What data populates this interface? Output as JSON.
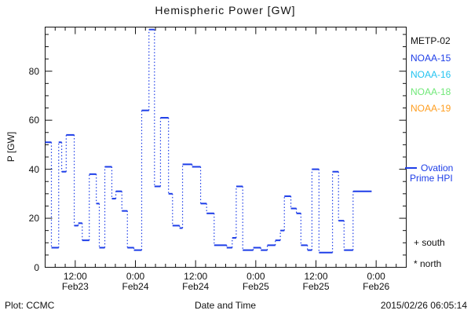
{
  "title": "Hemispheric Power [GW]",
  "y_axis": {
    "label": "P [GW]",
    "major_ticks": [
      0,
      20,
      40,
      60,
      80
    ],
    "minor_step": 5,
    "range": [
      0,
      98
    ]
  },
  "x_axis": {
    "label": "Date and Time",
    "range_hours": [
      0,
      72
    ],
    "minor_step_hours": 2,
    "major_ticks": [
      {
        "hour": 6,
        "time": "12:00",
        "date": "Feb23"
      },
      {
        "hour": 18,
        "time": "0:00",
        "date": "Feb24"
      },
      {
        "hour": 30,
        "time": "12:00",
        "date": "Feb24"
      },
      {
        "hour": 42,
        "time": "0:00",
        "date": "Feb25"
      },
      {
        "hour": 54,
        "time": "12:00",
        "date": "Feb25"
      },
      {
        "hour": 66,
        "time": "0:00",
        "date": "Feb26"
      }
    ]
  },
  "legend": {
    "satellites": [
      {
        "label": "METP-02",
        "color": "#111111"
      },
      {
        "label": "NOAA-15",
        "color": "#1E3EE8"
      },
      {
        "label": "NOAA-16",
        "color": "#22C3F0"
      },
      {
        "label": "NOAA-18",
        "color": "#70E878"
      },
      {
        "label": "NOAA-19",
        "color": "#FF9E20"
      }
    ],
    "series": {
      "label_line1": "Ovation",
      "label_line2": "Prime HPI",
      "color": "#1E3EE8"
    },
    "markers": {
      "south": "+ south",
      "north": "* north"
    }
  },
  "footer": {
    "left": "Plot: CCMC",
    "right": "2015/02/26 06:05:14"
  },
  "chart_data": {
    "type": "line",
    "subtype": "step-staircase",
    "title": "Hemispheric Power [GW]",
    "xlabel": "Date and Time",
    "ylabel": "P [GW]",
    "series_name": "Ovation Prime HPI",
    "color": "#1E3EE8",
    "grid": false,
    "legend_position": "right-outside",
    "ylim": [
      0,
      98
    ],
    "x_hours_after_feb23_0600": [
      0,
      72
    ],
    "steps_t0_t1_gw": [
      [
        0,
        1.25,
        51
      ],
      [
        1.25,
        2.7,
        8
      ],
      [
        2.7,
        3.3,
        51
      ],
      [
        3.3,
        4.2,
        39
      ],
      [
        4.2,
        5.8,
        54
      ],
      [
        5.8,
        6.6,
        17
      ],
      [
        6.6,
        7.4,
        18
      ],
      [
        7.4,
        8.8,
        11
      ],
      [
        8.8,
        10.2,
        38
      ],
      [
        10.2,
        10.8,
        26
      ],
      [
        10.8,
        11.9,
        8
      ],
      [
        11.9,
        13.3,
        41
      ],
      [
        13.3,
        14.1,
        28
      ],
      [
        14.1,
        15.3,
        31
      ],
      [
        15.3,
        16.4,
        23
      ],
      [
        16.4,
        17.7,
        8
      ],
      [
        17.7,
        19.25,
        7
      ],
      [
        19.25,
        20.7,
        64
      ],
      [
        20.7,
        21.8,
        97
      ],
      [
        21.8,
        23,
        33
      ],
      [
        23,
        24.6,
        61
      ],
      [
        24.6,
        25.4,
        30
      ],
      [
        25.4,
        26.8,
        17
      ],
      [
        26.8,
        27.4,
        16
      ],
      [
        27.4,
        29.3,
        42
      ],
      [
        29.3,
        31,
        41
      ],
      [
        31,
        32.2,
        26
      ],
      [
        32.2,
        33.7,
        22
      ],
      [
        33.7,
        36.2,
        9
      ],
      [
        36.2,
        37.3,
        8
      ],
      [
        37.3,
        38.1,
        12
      ],
      [
        38.1,
        39.4,
        33
      ],
      [
        39.4,
        41.5,
        7
      ],
      [
        41.5,
        43,
        8
      ],
      [
        43,
        44.3,
        7
      ],
      [
        44.3,
        45.9,
        9
      ],
      [
        45.9,
        46.9,
        11
      ],
      [
        46.9,
        47.7,
        15
      ],
      [
        47.7,
        49,
        29
      ],
      [
        49,
        50.1,
        24
      ],
      [
        50.1,
        51,
        22
      ],
      [
        51,
        52.3,
        9
      ],
      [
        52.3,
        53.2,
        7
      ],
      [
        53.2,
        54.6,
        40
      ],
      [
        54.6,
        57.3,
        6
      ],
      [
        57.3,
        58.5,
        39
      ],
      [
        58.5,
        59.6,
        19
      ],
      [
        59.6,
        61.4,
        7
      ],
      [
        61.4,
        65.1,
        31
      ]
    ]
  }
}
